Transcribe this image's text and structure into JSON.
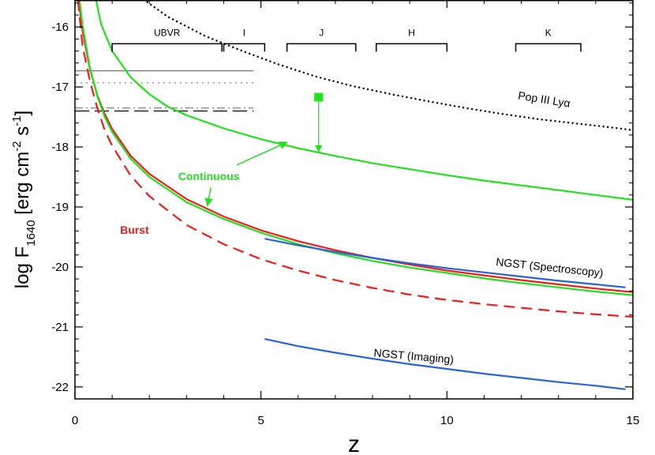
{
  "chart_data": {
    "type": "line",
    "title": "",
    "xlabel": "z",
    "ylabel_parts": [
      "log F",
      "1640",
      " [erg cm",
      "-2",
      " s",
      "-1",
      "]"
    ],
    "xlim": [
      0,
      15
    ],
    "ylim": [
      -22.2,
      -15.55
    ],
    "x_ticks": [
      0,
      5,
      10,
      15
    ],
    "y_ticks": [
      -22,
      -21,
      -20,
      -19,
      -18,
      -17,
      -16
    ],
    "colors": {
      "green": "#22e01e",
      "red": "#ee1c1c",
      "blue": "#2a62d8",
      "black": "#000000",
      "gray": "#777777",
      "marker": "#22e01e"
    },
    "series": [
      {
        "name": "Pop III Lyα",
        "style": "dotted",
        "color": "black",
        "x": [
          1.75,
          2.5,
          3.5,
          4.5,
          5.5,
          6.5,
          7.5,
          8.5,
          9.5,
          10.5,
          11.5,
          12.5,
          13.5,
          14.5,
          15
        ],
        "y": [
          -15.5,
          -15.83,
          -16.15,
          -16.4,
          -16.63,
          -16.83,
          -16.99,
          -17.12,
          -17.24,
          -17.35,
          -17.45,
          -17.54,
          -17.61,
          -17.68,
          -17.72
        ]
      },
      {
        "name": "Continuous (upper)",
        "style": "solid",
        "color": "green",
        "x": [
          0.55,
          0.7,
          1.0,
          1.5,
          2.0,
          2.5,
          3.0,
          4.0,
          5.0,
          6.0,
          7.0,
          8.0,
          9.0,
          10.0,
          11.0,
          12.0,
          13.0,
          14.0,
          15.0
        ],
        "y": [
          -15.5,
          -15.95,
          -16.4,
          -16.84,
          -17.12,
          -17.33,
          -17.47,
          -17.69,
          -17.87,
          -18.02,
          -18.15,
          -18.27,
          -18.37,
          -18.47,
          -18.56,
          -18.64,
          -18.72,
          -18.8,
          -18.88
        ]
      },
      {
        "name": "Burst (solid)",
        "style": "solid",
        "color": "red",
        "x": [
          0.1,
          0.2,
          0.4,
          0.6,
          0.8,
          1.0,
          1.5,
          2.0,
          3.0,
          4.0,
          5.0,
          6.0,
          7.0,
          8.0,
          9.0,
          10.0,
          11.0,
          12.0,
          13.0,
          14.0,
          15.0
        ],
        "y": [
          -15.55,
          -16.05,
          -16.7,
          -17.14,
          -17.45,
          -17.7,
          -18.15,
          -18.45,
          -18.87,
          -19.16,
          -19.39,
          -19.57,
          -19.72,
          -19.85,
          -19.96,
          -20.06,
          -20.14,
          -20.22,
          -20.29,
          -20.36,
          -20.42
        ]
      },
      {
        "name": "Continuous (lower)",
        "style": "solid",
        "color": "green",
        "x": [
          0.12,
          0.2,
          0.4,
          0.6,
          0.8,
          1.0,
          1.5,
          2.0,
          3.0,
          4.0,
          5.0,
          6.0,
          7.0,
          8.0,
          9.0,
          10.0,
          11.0,
          12.0,
          13.0,
          14.0,
          15.0
        ],
        "y": [
          -15.55,
          -15.95,
          -16.68,
          -17.15,
          -17.5,
          -17.75,
          -18.2,
          -18.5,
          -18.92,
          -19.2,
          -19.43,
          -19.62,
          -19.77,
          -19.9,
          -20.01,
          -20.1,
          -20.19,
          -20.27,
          -20.34,
          -20.41,
          -20.47
        ]
      },
      {
        "name": "Burst (dashed)",
        "style": "dashed",
        "color": "red",
        "x": [
          0.08,
          0.2,
          0.4,
          0.6,
          0.8,
          1.0,
          1.5,
          2.0,
          3.0,
          4.0,
          5.0,
          6.0,
          7.0,
          8.0,
          9.0,
          10.0,
          11.0,
          12.0,
          13.0,
          14.0,
          15.0
        ],
        "y": [
          -15.55,
          -16.3,
          -16.9,
          -17.35,
          -17.72,
          -17.98,
          -18.48,
          -18.82,
          -19.3,
          -19.62,
          -19.87,
          -20.06,
          -20.22,
          -20.35,
          -20.46,
          -20.55,
          -20.62,
          -20.68,
          -20.74,
          -20.79,
          -20.83
        ]
      },
      {
        "name": "NGST (Spectroscopy)",
        "style": "solid",
        "color": "blue",
        "x": [
          5.1,
          6.0,
          7.0,
          8.0,
          9.0,
          10.0,
          11.0,
          12.0,
          13.0,
          14.0,
          14.8
        ],
        "y": [
          -19.53,
          -19.64,
          -19.75,
          -19.85,
          -19.94,
          -20.02,
          -20.09,
          -20.16,
          -20.23,
          -20.29,
          -20.34
        ]
      },
      {
        "name": "NGST (Imaging)",
        "style": "solid",
        "color": "blue",
        "x": [
          5.1,
          6.0,
          7.0,
          8.0,
          9.0,
          10.0,
          11.0,
          12.0,
          13.0,
          14.0,
          14.8
        ],
        "y": [
          -21.2,
          -21.32,
          -21.43,
          -21.53,
          -21.62,
          -21.7,
          -21.78,
          -21.85,
          -21.92,
          -21.98,
          -22.04
        ]
      }
    ],
    "reference_lines": [
      {
        "style": "solid",
        "color": "gray",
        "x": [
          0,
          4.8
        ],
        "y": -16.73
      },
      {
        "style": "dotted",
        "color": "gray",
        "x": [
          0,
          4.8
        ],
        "y": -16.93
      },
      {
        "style": "dashdot",
        "color": "gray",
        "x": [
          0,
          4.8
        ],
        "y": -17.35
      },
      {
        "style": "longdash",
        "color": "black",
        "x": [
          0,
          4.8
        ],
        "y": -17.4
      }
    ],
    "bands": [
      {
        "label": "UBVR",
        "x0": 1.0,
        "x1": 3.95,
        "y": -16.28
      },
      {
        "label": "I",
        "x0": 4.0,
        "x1": 5.1,
        "y": -16.28
      },
      {
        "label": "J",
        "x0": 5.7,
        "x1": 7.55,
        "y": -16.28
      },
      {
        "label": "H",
        "x0": 8.1,
        "x1": 10.0,
        "y": -16.28
      },
      {
        "label": "K",
        "x0": 11.85,
        "x1": 13.6,
        "y": -16.28
      }
    ],
    "marker": {
      "x": 6.55,
      "y": -17.17,
      "arrow_to_y": -18.08
    },
    "annotations": [
      {
        "text": "Pop III Lyα",
        "x": 12.6,
        "y": -17.27,
        "color": "black",
        "rotate": 9
      },
      {
        "text": "Continuous",
        "x": 3.6,
        "y": -18.55,
        "color": "green",
        "rotate": 0
      },
      {
        "text": "Burst",
        "x": 1.6,
        "y": -19.45,
        "color": "red",
        "rotate": 0
      },
      {
        "text": "NGST (Spectroscopy)",
        "x": 12.75,
        "y": -20.07,
        "color": "black",
        "rotate": 6
      },
      {
        "text": "NGST (Imaging)",
        "x": 9.1,
        "y": -21.55,
        "color": "black",
        "rotate": 5
      }
    ],
    "pointers": [
      {
        "name": "continuous-pointer-upper",
        "x0": 4.35,
        "y0": -18.3,
        "x1": 5.7,
        "y1": -17.92
      },
      {
        "name": "continuous-pointer-lower",
        "x0": 3.65,
        "y0": -18.68,
        "x1": 3.56,
        "y1": -18.98
      }
    ]
  }
}
